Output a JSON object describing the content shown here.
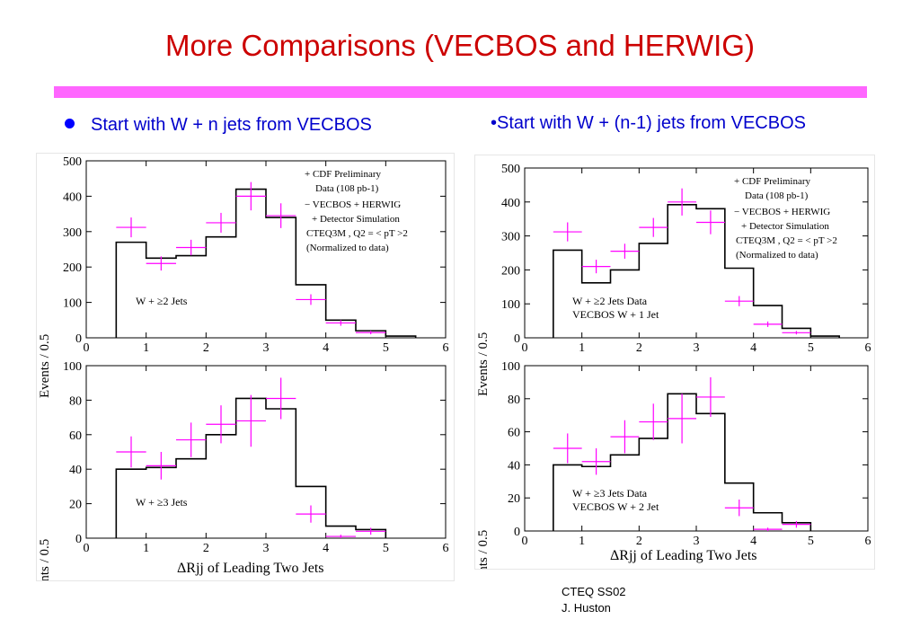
{
  "slide": {
    "title": "More Comparisons (VECBOS and HERWIG)",
    "bullet_left": "Start with W + n jets from VECBOS",
    "bullet_right": "•Start with W + (n-1) jets from VECBOS",
    "footer_line1": "CTEQ SS02",
    "footer_line2": "J. Huston",
    "colors": {
      "title": "#cc0000",
      "bullet": "#0000cc",
      "rule": "#ff66ff",
      "data_marker": "#ff00ff",
      "histogram": "#000000"
    }
  },
  "figures": {
    "left": {
      "ylabel": "Events / 0.5",
      "xlabel": "ΔRjj of Leading Two Jets",
      "legend": {
        "line1": "+ CDF Preliminary",
        "line2": "Data (108 pb-1)",
        "line3": "− VECBOS + HERWIG",
        "line4": "+ Detector Simulation",
        "line5": "CTEQ3M , Q2 = < pT >2",
        "line6": "(Normalized to data)"
      }
    },
    "right": {
      "ylabel": "Events / 0.5",
      "xlabel": "ΔRjj of Leading Two Jets",
      "legend": {
        "line1": "+ CDF Preliminary",
        "line2": "Data (108 pb-1)",
        "line3": "− VECBOS + HERWIG",
        "line4": "+ Detector Simulation",
        "line5": "CTEQ3M , Q2 = < pT >2",
        "line6": "(Normalized to data)"
      }
    }
  },
  "chart_data": [
    {
      "type": "line",
      "panel": "top-left",
      "label": "W + ≥2 Jets",
      "xlim": [
        0,
        6
      ],
      "ylim": [
        0,
        500
      ],
      "xticks": [
        0,
        1,
        2,
        3,
        4,
        5,
        6
      ],
      "yticks": [
        0,
        100,
        200,
        300,
        400,
        500
      ],
      "histogram": {
        "edges": [
          0.5,
          1.0,
          1.5,
          2.0,
          2.5,
          3.0,
          3.5,
          4.0,
          4.5,
          5.0,
          5.5
        ],
        "values": [
          270,
          225,
          232,
          285,
          420,
          340,
          150,
          50,
          20,
          5
        ]
      },
      "data": {
        "x": [
          0.75,
          1.25,
          1.75,
          2.25,
          2.75,
          3.25,
          3.75,
          4.25,
          4.75
        ],
        "y": [
          312,
          210,
          255,
          325,
          400,
          345,
          108,
          42,
          15
        ],
        "err": [
          28,
          20,
          22,
          28,
          40,
          35,
          15,
          8,
          5
        ]
      }
    },
    {
      "type": "line",
      "panel": "bottom-left",
      "label": "W + ≥3 Jets",
      "xlim": [
        0,
        6
      ],
      "ylim": [
        0,
        100
      ],
      "xticks": [
        0,
        1,
        2,
        3,
        4,
        5,
        6
      ],
      "yticks": [
        0,
        20,
        40,
        60,
        80,
        100
      ],
      "histogram": {
        "edges": [
          0.5,
          1.0,
          1.5,
          2.0,
          2.5,
          3.0,
          3.5,
          4.0,
          4.5,
          5.0
        ],
        "values": [
          40,
          41,
          46,
          60,
          81,
          75,
          30,
          7,
          5
        ]
      },
      "data": {
        "x": [
          0.75,
          1.25,
          1.75,
          2.25,
          2.75,
          3.25,
          3.75,
          4.25,
          4.75
        ],
        "y": [
          50,
          42,
          57,
          66,
          68,
          81,
          14,
          1,
          4
        ],
        "err": [
          9,
          8,
          10,
          11,
          15,
          12,
          5,
          1,
          2
        ]
      }
    },
    {
      "type": "line",
      "panel": "top-right",
      "label": "W + ≥2 Jets Data",
      "label2": "VECBOS W + 1 Jet",
      "xlim": [
        0,
        6
      ],
      "ylim": [
        0,
        500
      ],
      "xticks": [
        0,
        1,
        2,
        3,
        4,
        5,
        6
      ],
      "yticks": [
        0,
        100,
        200,
        300,
        400,
        500
      ],
      "histogram": {
        "edges": [
          0.5,
          1.0,
          1.5,
          2.0,
          2.5,
          3.0,
          3.5,
          4.0,
          4.5,
          5.0,
          5.5
        ],
        "values": [
          258,
          162,
          200,
          278,
          392,
          380,
          205,
          95,
          28,
          5
        ]
      },
      "data": {
        "x": [
          0.75,
          1.25,
          1.75,
          2.25,
          2.75,
          3.25,
          3.75,
          4.25,
          4.75
        ],
        "y": [
          312,
          210,
          255,
          325,
          400,
          340,
          108,
          40,
          15
        ],
        "err": [
          28,
          20,
          22,
          28,
          40,
          35,
          15,
          8,
          5
        ]
      }
    },
    {
      "type": "line",
      "panel": "bottom-right",
      "label": "W + ≥3 Jets Data",
      "label2": "VECBOS W + 2 Jet",
      "xlim": [
        0,
        6
      ],
      "ylim": [
        0,
        100
      ],
      "xticks": [
        0,
        1,
        2,
        3,
        4,
        5,
        6
      ],
      "yticks": [
        0,
        20,
        40,
        60,
        80,
        100
      ],
      "histogram": {
        "edges": [
          0.5,
          1.0,
          1.5,
          2.0,
          2.5,
          3.0,
          3.5,
          4.0,
          4.5,
          5.0
        ],
        "values": [
          40,
          39,
          46,
          56,
          83,
          71,
          29,
          11,
          5
        ]
      },
      "data": {
        "x": [
          0.75,
          1.25,
          1.75,
          2.25,
          2.75,
          3.25,
          3.75,
          4.25,
          4.75
        ],
        "y": [
          50,
          42,
          57,
          66,
          68,
          81,
          14,
          1,
          4
        ],
        "err": [
          9,
          8,
          10,
          11,
          15,
          12,
          5,
          1,
          2
        ]
      }
    }
  ]
}
